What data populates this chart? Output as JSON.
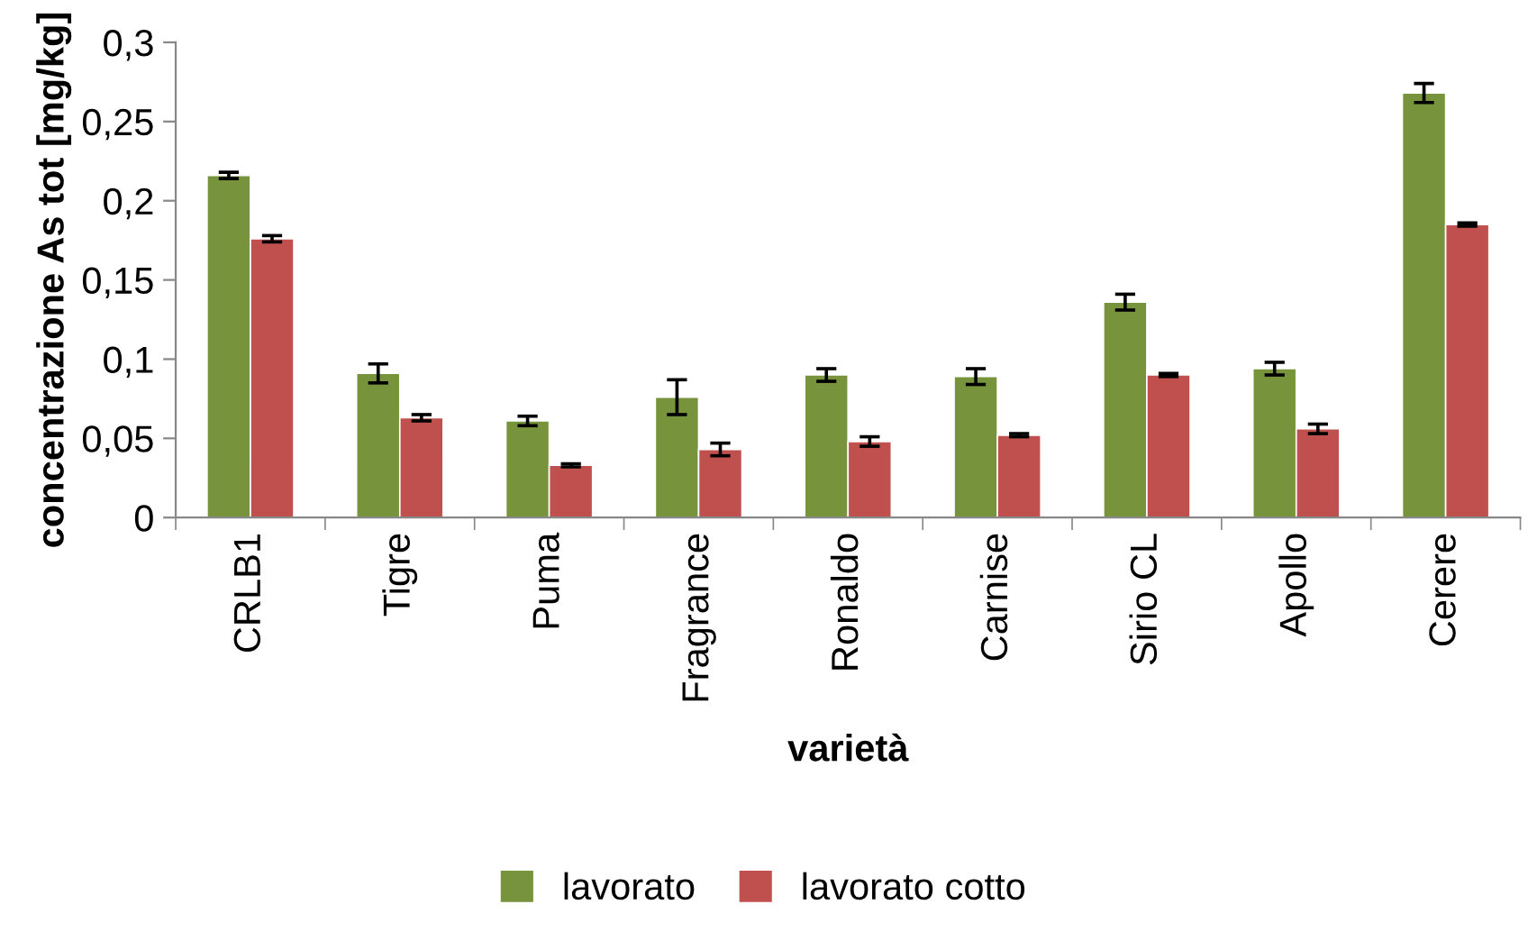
{
  "chart_data": {
    "type": "bar",
    "xlabel": "varietà",
    "ylabel": "concentrazione As tot [mg/kg]",
    "categories": [
      "CRLB1",
      "Tigre",
      "Puma",
      "Fragrance",
      "Ronaldo",
      "Carnise",
      "Sirio CL",
      "Apollo",
      "Cerere"
    ],
    "series": [
      {
        "name": "lavorato",
        "color": "#77933c",
        "values": [
          0.216,
          0.091,
          0.061,
          0.076,
          0.09,
          0.089,
          0.136,
          0.094,
          0.268
        ],
        "errors": [
          0.002,
          0.006,
          0.003,
          0.011,
          0.004,
          0.005,
          0.005,
          0.004,
          0.006
        ]
      },
      {
        "name": "lavorato cotto",
        "color": "#c0504d",
        "values": [
          0.176,
          0.063,
          0.033,
          0.043,
          0.048,
          0.052,
          0.09,
          0.056,
          0.185
        ],
        "errors": [
          0.002,
          0.002,
          0.001,
          0.004,
          0.003,
          0.001,
          0.001,
          0.003,
          0.001
        ]
      }
    ],
    "ylim": [
      0,
      0.3
    ],
    "yticks": [
      {
        "value": 0,
        "label": "0"
      },
      {
        "value": 0.05,
        "label": "0,05"
      },
      {
        "value": 0.1,
        "label": "0,1"
      },
      {
        "value": 0.15,
        "label": "0,15"
      },
      {
        "value": 0.2,
        "label": "0,2"
      },
      {
        "value": 0.25,
        "label": "0,25"
      },
      {
        "value": 0.3,
        "label": "0,3"
      }
    ],
    "grid": false,
    "legend": "bottom"
  }
}
